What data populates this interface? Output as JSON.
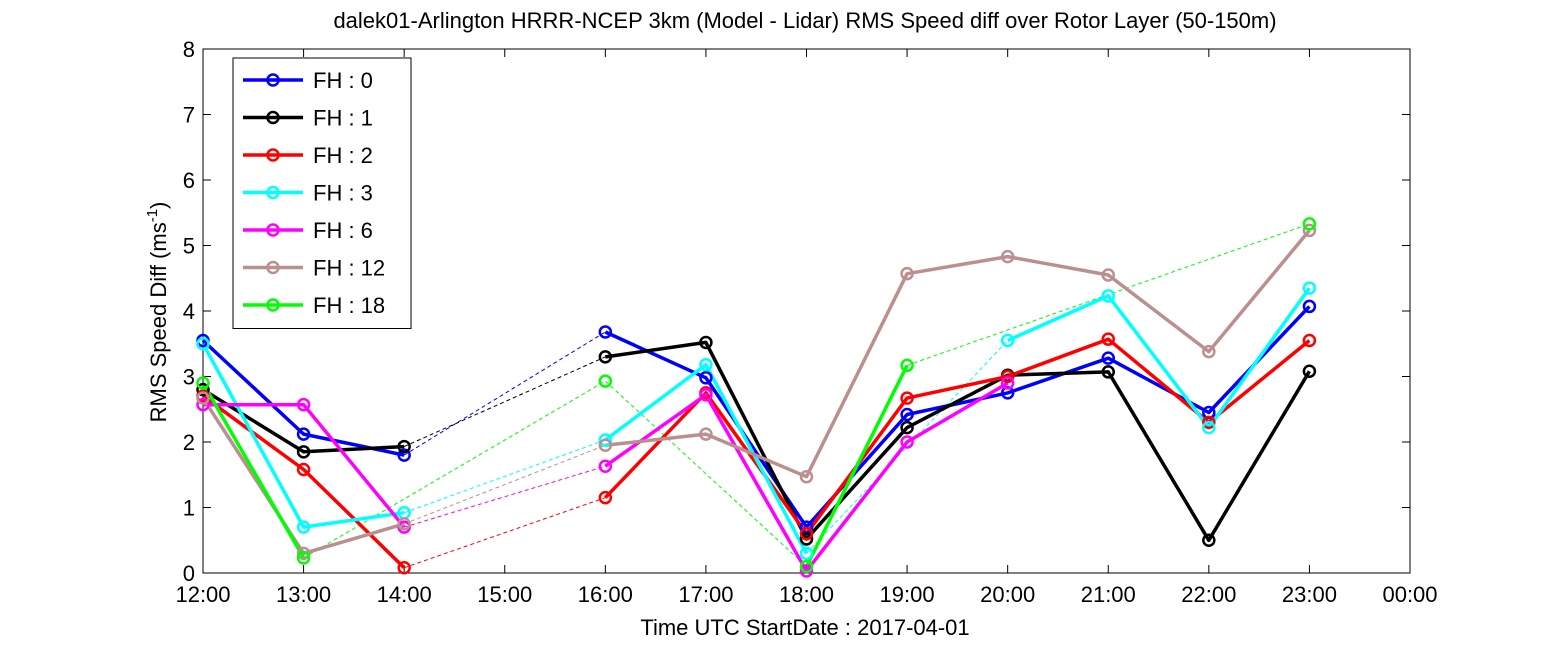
{
  "chart_data": {
    "type": "line",
    "title": "dalek01-Arlington HRRR-NCEP 3km (Model - Lidar) RMS Speed diff over Rotor Layer (50-150m)",
    "xlabel": "Time UTC    StartDate : 2017-04-01",
    "ylabel_base": "RMS Speed Diff (ms",
    "ylabel_sup": "-1",
    "ylabel_close": ")",
    "x_tick_labels": [
      "12:00",
      "13:00",
      "14:00",
      "15:00",
      "16:00",
      "17:00",
      "18:00",
      "19:00",
      "20:00",
      "21:00",
      "22:00",
      "23:00",
      "00:00"
    ],
    "x_ticks": [
      12,
      13,
      14,
      15,
      16,
      17,
      18,
      19,
      20,
      21,
      22,
      23,
      24
    ],
    "xlim": [
      12,
      24
    ],
    "ylim": [
      0,
      8
    ],
    "y_ticks": [
      0,
      1,
      2,
      3,
      4,
      5,
      6,
      7,
      8
    ],
    "y_tick_labels": [
      "0",
      "1",
      "2",
      "3",
      "4",
      "5",
      "6",
      "7",
      "8"
    ],
    "grid": false,
    "legend_position": "top-left",
    "series": [
      {
        "name": "FH : 0",
        "color": "#0000ff",
        "segments": [
          [
            [
              12,
              3.55
            ],
            [
              13,
              2.12
            ],
            [
              14,
              1.8
            ]
          ],
          [
            [
              16,
              3.68
            ],
            [
              17,
              2.98
            ],
            [
              18,
              0.7
            ],
            [
              19,
              2.42
            ],
            [
              20,
              2.75
            ],
            [
              21,
              3.28
            ],
            [
              22,
              2.45
            ],
            [
              23,
              4.07
            ]
          ]
        ]
      },
      {
        "name": "FH : 1",
        "color": "#000000",
        "segments": [
          [
            [
              12,
              2.8
            ],
            [
              13,
              1.85
            ],
            [
              14,
              1.93
            ]
          ],
          [
            [
              16,
              3.3
            ],
            [
              17,
              3.52
            ],
            [
              18,
              0.52
            ],
            [
              19,
              2.22
            ],
            [
              20,
              3.02
            ],
            [
              21,
              3.07
            ],
            [
              22,
              0.5
            ],
            [
              23,
              3.08
            ]
          ]
        ]
      },
      {
        "name": "FH : 2",
        "color": "#ff0000",
        "segments": [
          [
            [
              12,
              2.7
            ],
            [
              13,
              1.58
            ],
            [
              14,
              0.08
            ]
          ],
          [
            [
              16,
              1.15
            ],
            [
              17,
              2.75
            ],
            [
              18,
              0.6
            ],
            [
              19,
              2.67
            ],
            [
              20,
              3.0
            ],
            [
              21,
              3.57
            ],
            [
              22,
              2.3
            ],
            [
              23,
              3.55
            ]
          ]
        ]
      },
      {
        "name": "FH : 3",
        "color": "#00ffff",
        "segments": [
          [
            [
              12,
              3.5
            ],
            [
              13,
              0.7
            ],
            [
              14,
              0.92
            ]
          ],
          [
            [
              16,
              2.03
            ],
            [
              17,
              3.18
            ],
            [
              18,
              0.3
            ]
          ],
          [
            [
              20,
              3.55
            ],
            [
              21,
              4.23
            ],
            [
              22,
              2.22
            ],
            [
              23,
              4.35
            ]
          ]
        ]
      },
      {
        "name": "FH : 6",
        "color": "#ff00ff",
        "segments": [
          [
            [
              12,
              2.57
            ],
            [
              13,
              2.57
            ],
            [
              14,
              0.7
            ]
          ],
          [
            [
              16,
              1.63
            ],
            [
              17,
              2.72
            ],
            [
              18,
              0.03
            ],
            [
              19,
              2.0
            ],
            [
              20,
              2.9
            ]
          ]
        ]
      },
      {
        "name": "FH : 12",
        "color": "#bc8f8f",
        "segments": [
          [
            [
              12,
              2.67
            ],
            [
              13,
              0.3
            ],
            [
              14,
              0.75
            ]
          ],
          [
            [
              16,
              1.95
            ],
            [
              17,
              2.12
            ],
            [
              18,
              1.47
            ],
            [
              19,
              4.57
            ],
            [
              20,
              4.83
            ],
            [
              21,
              4.55
            ],
            [
              22,
              3.38
            ],
            [
              23,
              5.23
            ]
          ]
        ]
      },
      {
        "name": "FH : 18",
        "color": "#00ff00",
        "segments": [
          [
            [
              12,
              2.9
            ],
            [
              13,
              0.23
            ]
          ],
          [
            [
              16,
              2.93
            ]
          ],
          [
            [
              18,
              0.1
            ],
            [
              19,
              3.17
            ]
          ],
          [
            [
              23,
              5.33
            ]
          ]
        ]
      }
    ]
  }
}
